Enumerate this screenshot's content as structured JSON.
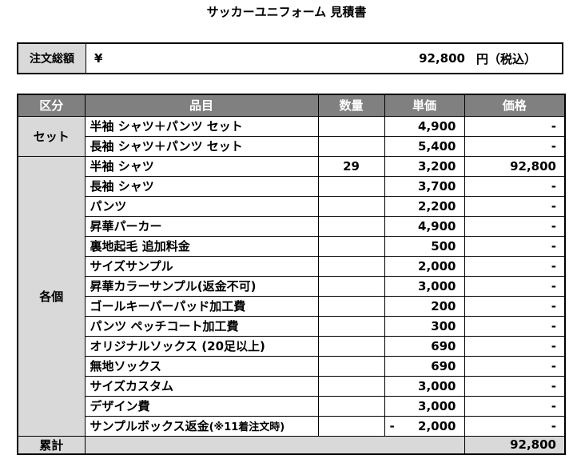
{
  "title": "サッカーユニフォーム 見積書",
  "order_total": {
    "label": "注文総額",
    "currency": "¥",
    "amount": "92,800",
    "unit": "円（税込）"
  },
  "columns": [
    "区分",
    "品目",
    "数量",
    "単価",
    "価格"
  ],
  "groups": [
    {
      "name": "セット",
      "rows": [
        {
          "item": "半袖 シャツ＋パンツ セット",
          "qty": "",
          "unit_price": "4,900",
          "price": "-"
        },
        {
          "item": "長袖 シャツ＋パンツ セット",
          "qty": "",
          "unit_price": "5,400",
          "price": "-"
        }
      ]
    },
    {
      "name": "各個",
      "rows": [
        {
          "item": "半袖 シャツ",
          "qty": "29",
          "unit_price": "3,200",
          "price": "92,800"
        },
        {
          "item": "長袖 シャツ",
          "qty": "",
          "unit_price": "3,700",
          "price": "-"
        },
        {
          "item": "パンツ",
          "qty": "",
          "unit_price": "2,200",
          "price": "-"
        },
        {
          "item": "昇華パーカー",
          "qty": "",
          "unit_price": "4,900",
          "price": "-"
        },
        {
          "item": "裏地起毛 追加料金",
          "qty": "",
          "unit_price": "500",
          "price": "-"
        },
        {
          "item": "サイズサンプル",
          "qty": "",
          "unit_price": "2,000",
          "price": "-"
        },
        {
          "item": "昇華カラーサンプル(返金不可)",
          "qty": "",
          "unit_price": "3,000",
          "price": "-"
        },
        {
          "item": "ゴールキーパーパッド加工費",
          "qty": "",
          "unit_price": "200",
          "price": "-"
        },
        {
          "item": "パンツ ペッチコート加工費",
          "qty": "",
          "unit_price": "300",
          "price": "-"
        },
        {
          "item": "オリジナルソックス (20足以上)",
          "qty": "",
          "unit_price": "690",
          "price": "-"
        },
        {
          "item": "無地ソックス",
          "qty": "",
          "unit_price": "690",
          "price": "-"
        },
        {
          "item": "サイズカスタム",
          "qty": "",
          "unit_price": "3,000",
          "price": "-"
        },
        {
          "item": "デザイン費",
          "qty": "",
          "unit_price": "3,000",
          "price": "-"
        },
        {
          "item": "サンプルボックス返金",
          "item_note": "(※11着注文時)",
          "qty": "",
          "unit_price_sign": "-",
          "unit_price": "2,000",
          "price": "-"
        }
      ]
    }
  ],
  "summary": {
    "label": "累計",
    "total": "92,800"
  }
}
